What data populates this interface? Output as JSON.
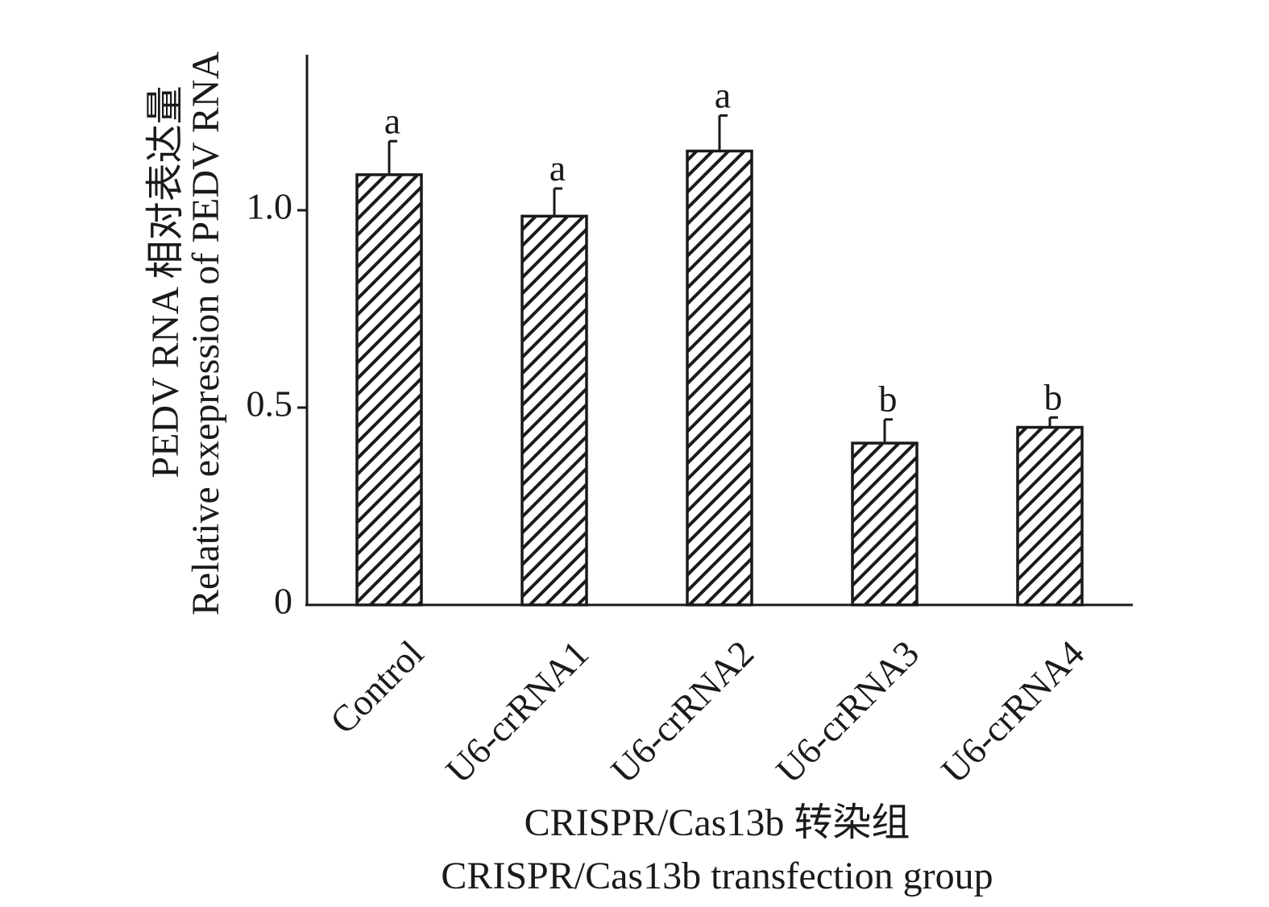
{
  "chart_data": {
    "type": "bar",
    "categories": [
      "Control",
      "U6-crRNA1",
      "U6-crRNA2",
      "U6-crRNA3",
      "U6-crRNA4"
    ],
    "values": [
      1.09,
      0.985,
      1.15,
      0.41,
      0.45
    ],
    "errors": [
      0.085,
      0.07,
      0.09,
      0.06,
      0.025
    ],
    "significance": [
      "a",
      "a",
      "a",
      "b",
      "b"
    ],
    "ylabel_cn": "PEDV RNA 相对表达量",
    "ylabel_en": "Relative exepression of PEDV RNA",
    "xlabel_cn": "CRISPR/Cas13b 转染组",
    "xlabel_en": "CRISPR/Cas13b transfection group",
    "yticks": [
      0,
      0.5,
      1.0
    ],
    "ytick_labels": [
      "0",
      "0.5",
      "1.0"
    ],
    "ylim": [
      0,
      1.4
    ],
    "bar_fill": "diagonal-hatch",
    "colors": {
      "ink": "#1a1a1a",
      "background": "#ffffff"
    }
  }
}
